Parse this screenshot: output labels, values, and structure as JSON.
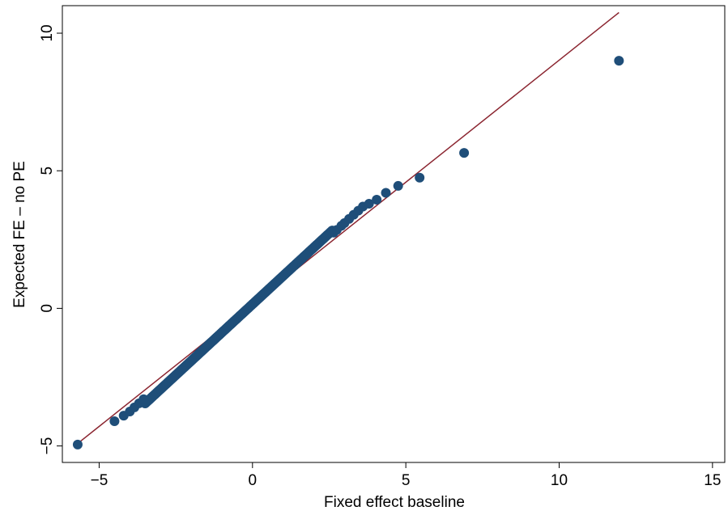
{
  "chart_data": {
    "type": "scatter",
    "title": "",
    "xlabel": "Fixed effect baseline",
    "ylabel": "Expected FE – no PE",
    "xlim": [
      -6.2,
      15.4
    ],
    "ylim": [
      -5.6,
      11.0
    ],
    "xticks": [
      -5,
      0,
      5,
      10,
      15
    ],
    "yticks": [
      -5,
      0,
      5,
      10
    ],
    "xtick_labels": [
      "−5",
      "0",
      "5",
      "10",
      "15"
    ],
    "ytick_labels": [
      "−5",
      "0",
      "5",
      "10"
    ],
    "grid": false,
    "legend": "none",
    "colors": {
      "points": "#1f4e79",
      "fit_line": "#8b2530",
      "axes": "#000000"
    },
    "fit_line": {
      "x": [
        -5.8,
        11.95
      ],
      "y": [
        -5.0,
        10.75
      ]
    },
    "outlier_points": {
      "x": [
        -5.7,
        -4.5,
        -4.2,
        -4.0,
        -3.85,
        -3.7,
        -3.55,
        2.65,
        2.75,
        2.9,
        3.0,
        3.15,
        3.3,
        3.45,
        3.6,
        3.8,
        4.05,
        4.35,
        4.75,
        5.45,
        6.9,
        11.95
      ],
      "y": [
        -4.95,
        -4.1,
        -3.9,
        -3.75,
        -3.6,
        -3.45,
        -3.3,
        2.75,
        2.85,
        3.0,
        3.1,
        3.25,
        3.4,
        3.55,
        3.7,
        3.8,
        3.95,
        4.2,
        4.45,
        4.75,
        5.65,
        9.0
      ]
    },
    "dense_band": {
      "x_start": -3.5,
      "x_end": 2.6,
      "slope": 1.03,
      "intercept": 0.15,
      "n": 250
    }
  }
}
